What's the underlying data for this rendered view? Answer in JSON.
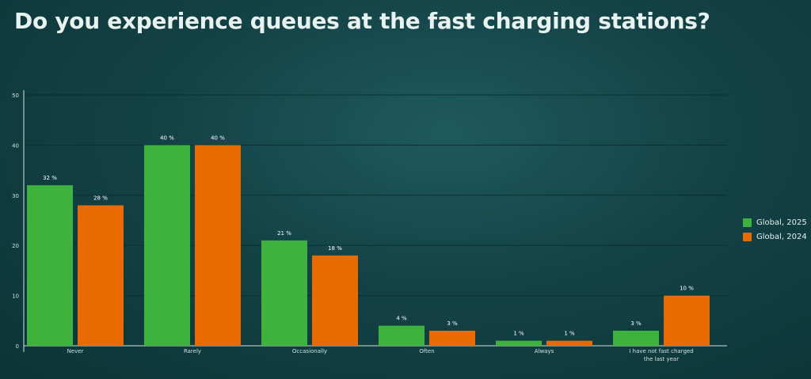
{
  "title": "Do you experience queues at the fast charging stations?",
  "colors": {
    "series0": "#3db33d",
    "series1": "#e96b00",
    "axis": "#cfe3de",
    "grid": "#0b3032"
  },
  "legend": {
    "items": [
      {
        "label": "Global, 2025"
      },
      {
        "label": "Global, 2024"
      }
    ]
  },
  "chart_data": {
    "type": "bar",
    "categories": [
      "Never",
      "Rarely",
      "Occasionally",
      "Often",
      "Always",
      "I have not fast charged the last year"
    ],
    "series": [
      {
        "name": "Global, 2025",
        "values": [
          32,
          40,
          21,
          4,
          1,
          3
        ]
      },
      {
        "name": "Global, 2024",
        "values": [
          28,
          40,
          18,
          3,
          1,
          10
        ]
      }
    ],
    "value_labels": [
      [
        "32 %",
        "40 %",
        "21 %",
        "4 %",
        "1 %",
        "3 %"
      ],
      [
        "28 %",
        "40 %",
        "18 %",
        "3 %",
        "1 %",
        "10 %"
      ]
    ],
    "yticks": [
      0,
      10,
      20,
      30,
      40,
      50
    ],
    "ylim": [
      0,
      50
    ],
    "grid": true,
    "legend_position": "right"
  }
}
